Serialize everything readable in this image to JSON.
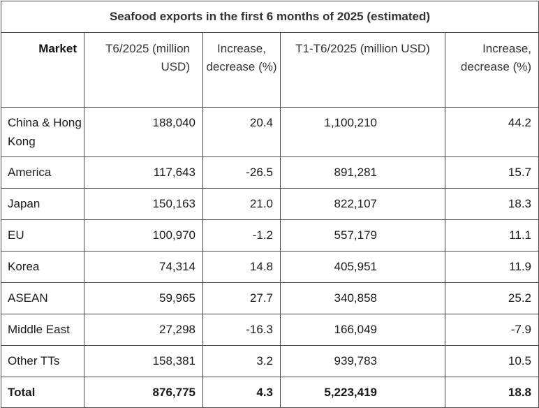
{
  "table": {
    "title": "Seafood exports in the first 6 months of 2025 (estimated)",
    "headers": {
      "market": "Market",
      "t6": "T6/2025 (million USD)",
      "inc1": "Increase, decrease (%)",
      "t1": "T1-T6/2025 (million USD)",
      "inc2": "Increase, decrease (%)"
    },
    "rows": [
      {
        "market": "China & Hong Kong",
        "t6": "188,040",
        "inc1": "20.4",
        "t1": "1,100,210",
        "inc2": "44.2"
      },
      {
        "market": "America",
        "t6": "117,643",
        "inc1": "-26.5",
        "t1": "891,281",
        "inc2": "15.7"
      },
      {
        "market": "Japan",
        "t6": "150,163",
        "inc1": "21.0",
        "t1": "822,107",
        "inc2": "18.3"
      },
      {
        "market": "EU",
        "t6": "100,970",
        "inc1": "-1.2",
        "t1": "557,179",
        "inc2": "11.1"
      },
      {
        "market": "Korea",
        "t6": "74,314",
        "inc1": "14.8",
        "t1": "405,951",
        "inc2": "11.9"
      },
      {
        "market": "ASEAN",
        "t6": "59,965",
        "inc1": "27.7",
        "t1": "340,858",
        "inc2": "25.2"
      },
      {
        "market": "Middle East",
        "t6": "27,298",
        "inc1": "-16.3",
        "t1": "166,049",
        "inc2": "-7.9"
      },
      {
        "market": "Other TTs",
        "t6": "158,381",
        "inc1": "3.2",
        "t1": "939,783",
        "inc2": "10.5"
      }
    ],
    "total": {
      "market": "Total",
      "t6": "876,775",
      "inc1": "4.3",
      "t1": "5,223,419",
      "inc2": "18.8"
    }
  }
}
